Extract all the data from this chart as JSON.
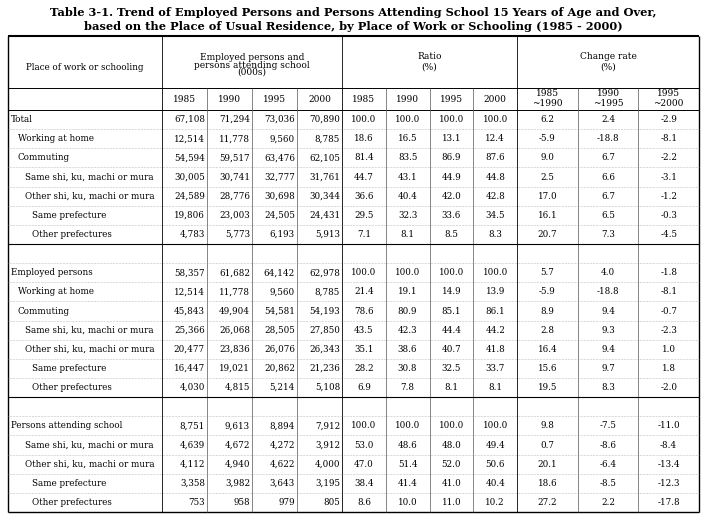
{
  "title_line1": "Table 3-1. Trend of Employed Persons and Persons Attending School 15 Years of Age and Over,",
  "title_line2": "based on the Place of Usual Residence, by Place of Work or Schooling (1985 - 2000)",
  "rows": [
    {
      "label": "Total",
      "indent": 0,
      "emp": [
        "67,108",
        "71,294",
        "73,036",
        "70,890"
      ],
      "ratio": [
        "100.0",
        "100.0",
        "100.0",
        "100.0"
      ],
      "change": [
        "6.2",
        "2.4",
        "-2.9"
      ],
      "blank": false
    },
    {
      "label": "Working at home",
      "indent": 1,
      "emp": [
        "12,514",
        "11,778",
        "9,560",
        "8,785"
      ],
      "ratio": [
        "18.6",
        "16.5",
        "13.1",
        "12.4"
      ],
      "change": [
        "-5.9",
        "-18.8",
        "-8.1"
      ],
      "blank": false
    },
    {
      "label": "Commuting",
      "indent": 1,
      "emp": [
        "54,594",
        "59,517",
        "63,476",
        "62,105"
      ],
      "ratio": [
        "81.4",
        "83.5",
        "86.9",
        "87.6"
      ],
      "change": [
        "9.0",
        "6.7",
        "-2.2"
      ],
      "blank": false
    },
    {
      "label": "Same shi, ku, machi or mura",
      "indent": 2,
      "emp": [
        "30,005",
        "30,741",
        "32,777",
        "31,761"
      ],
      "ratio": [
        "44.7",
        "43.1",
        "44.9",
        "44.8"
      ],
      "change": [
        "2.5",
        "6.6",
        "-3.1"
      ],
      "blank": false
    },
    {
      "label": "Other shi, ku, machi or mura",
      "indent": 2,
      "emp": [
        "24,589",
        "28,776",
        "30,698",
        "30,344"
      ],
      "ratio": [
        "36.6",
        "40.4",
        "42.0",
        "42.8"
      ],
      "change": [
        "17.0",
        "6.7",
        "-1.2"
      ],
      "blank": false
    },
    {
      "label": "Same prefecture",
      "indent": 3,
      "emp": [
        "19,806",
        "23,003",
        "24,505",
        "24,431"
      ],
      "ratio": [
        "29.5",
        "32.3",
        "33.6",
        "34.5"
      ],
      "change": [
        "16.1",
        "6.5",
        "-0.3"
      ],
      "blank": false
    },
    {
      "label": "Other prefectures",
      "indent": 3,
      "emp": [
        "4,783",
        "5,773",
        "6,193",
        "5,913"
      ],
      "ratio": [
        "7.1",
        "8.1",
        "8.5",
        "8.3"
      ],
      "change": [
        "20.7",
        "7.3",
        "-4.5"
      ],
      "blank": false
    },
    {
      "label": "",
      "indent": 0,
      "emp": [
        "",
        "",
        "",
        ""
      ],
      "ratio": [
        "",
        "",
        "",
        ""
      ],
      "change": [
        "",
        "",
        ""
      ],
      "blank": true
    },
    {
      "label": "Employed persons",
      "indent": 0,
      "emp": [
        "58,357",
        "61,682",
        "64,142",
        "62,978"
      ],
      "ratio": [
        "100.0",
        "100.0",
        "100.0",
        "100.0"
      ],
      "change": [
        "5.7",
        "4.0",
        "-1.8"
      ],
      "blank": false
    },
    {
      "label": "Working at home",
      "indent": 1,
      "emp": [
        "12,514",
        "11,778",
        "9,560",
        "8,785"
      ],
      "ratio": [
        "21.4",
        "19.1",
        "14.9",
        "13.9"
      ],
      "change": [
        "-5.9",
        "-18.8",
        "-8.1"
      ],
      "blank": false
    },
    {
      "label": "Commuting",
      "indent": 1,
      "emp": [
        "45,843",
        "49,904",
        "54,581",
        "54,193"
      ],
      "ratio": [
        "78.6",
        "80.9",
        "85.1",
        "86.1"
      ],
      "change": [
        "8.9",
        "9.4",
        "-0.7"
      ],
      "blank": false
    },
    {
      "label": "Same shi, ku, machi or mura",
      "indent": 2,
      "emp": [
        "25,366",
        "26,068",
        "28,505",
        "27,850"
      ],
      "ratio": [
        "43.5",
        "42.3",
        "44.4",
        "44.2"
      ],
      "change": [
        "2.8",
        "9.3",
        "-2.3"
      ],
      "blank": false
    },
    {
      "label": "Other shi, ku, machi or mura",
      "indent": 2,
      "emp": [
        "20,477",
        "23,836",
        "26,076",
        "26,343"
      ],
      "ratio": [
        "35.1",
        "38.6",
        "40.7",
        "41.8"
      ],
      "change": [
        "16.4",
        "9.4",
        "1.0"
      ],
      "blank": false
    },
    {
      "label": "Same prefecture",
      "indent": 3,
      "emp": [
        "16,447",
        "19,021",
        "20,862",
        "21,236"
      ],
      "ratio": [
        "28.2",
        "30.8",
        "32.5",
        "33.7"
      ],
      "change": [
        "15.6",
        "9.7",
        "1.8"
      ],
      "blank": false
    },
    {
      "label": "Other prefectures",
      "indent": 3,
      "emp": [
        "4,030",
        "4,815",
        "5,214",
        "5,108"
      ],
      "ratio": [
        "6.9",
        "7.8",
        "8.1",
        "8.1"
      ],
      "change": [
        "19.5",
        "8.3",
        "-2.0"
      ],
      "blank": false
    },
    {
      "label": "",
      "indent": 0,
      "emp": [
        "",
        "",
        "",
        ""
      ],
      "ratio": [
        "",
        "",
        "",
        ""
      ],
      "change": [
        "",
        "",
        ""
      ],
      "blank": true
    },
    {
      "label": "Persons attending school",
      "indent": 0,
      "emp": [
        "8,751",
        "9,613",
        "8,894",
        "7,912"
      ],
      "ratio": [
        "100.0",
        "100.0",
        "100.0",
        "100.0"
      ],
      "change": [
        "9.8",
        "-7.5",
        "-11.0"
      ],
      "blank": false
    },
    {
      "label": "Same shi, ku, machi or mura",
      "indent": 2,
      "emp": [
        "4,639",
        "4,672",
        "4,272",
        "3,912"
      ],
      "ratio": [
        "53.0",
        "48.6",
        "48.0",
        "49.4"
      ],
      "change": [
        "0.7",
        "-8.6",
        "-8.4"
      ],
      "blank": false
    },
    {
      "label": "Other shi, ku, machi or mura",
      "indent": 2,
      "emp": [
        "4,112",
        "4,940",
        "4,622",
        "4,000"
      ],
      "ratio": [
        "47.0",
        "51.4",
        "52.0",
        "50.6"
      ],
      "change": [
        "20.1",
        "-6.4",
        "-13.4"
      ],
      "blank": false
    },
    {
      "label": "Same prefecture",
      "indent": 3,
      "emp": [
        "3,358",
        "3,982",
        "3,643",
        "3,195"
      ],
      "ratio": [
        "38.4",
        "41.4",
        "41.0",
        "40.4"
      ],
      "change": [
        "18.6",
        "-8.5",
        "-12.3"
      ],
      "blank": false
    },
    {
      "label": "Other prefectures",
      "indent": 3,
      "emp": [
        "753",
        "958",
        "979",
        "805"
      ],
      "ratio": [
        "8.6",
        "10.0",
        "11.0",
        "10.2"
      ],
      "change": [
        "27.2",
        "2.2",
        "-17.8"
      ],
      "blank": false
    }
  ]
}
